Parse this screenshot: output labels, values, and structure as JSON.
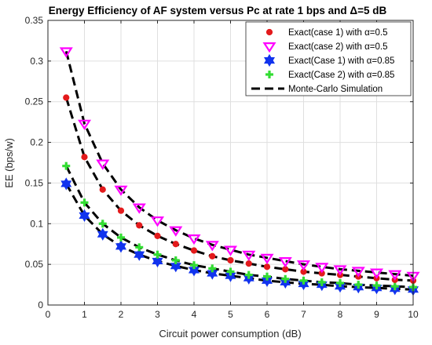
{
  "chart_data": {
    "type": "line",
    "title": "Energy Efficiency of AF system versus Pc at rate 1 bps and Δ=5 dB",
    "xlabel": "Circuit power consumption (dB)",
    "ylabel": "EE (bps/w)",
    "xlim": [
      0,
      10
    ],
    "ylim": [
      0,
      0.35
    ],
    "xticks": [
      "0",
      "1",
      "2",
      "3",
      "4",
      "5",
      "6",
      "7",
      "8",
      "9",
      "10"
    ],
    "yticks": [
      "0",
      "0.05",
      "0.1",
      "0.15",
      "0.2",
      "0.25",
      "0.3",
      "0.35"
    ],
    "grid": true,
    "legend_position": "top-right",
    "x": [
      0.5,
      1,
      1.5,
      2,
      2.5,
      3,
      3.5,
      4,
      4.5,
      5,
      5.5,
      6,
      6.5,
      7,
      7.5,
      8,
      8.5,
      9,
      9.5,
      10
    ],
    "series": [
      {
        "name": "Exact(case 1) with α=0.5",
        "marker": "dot",
        "color": "#e31a1c",
        "values": [
          0.255,
          0.182,
          0.142,
          0.116,
          0.098,
          0.085,
          0.075,
          0.067,
          0.06,
          0.055,
          0.051,
          0.047,
          0.044,
          0.041,
          0.039,
          0.037,
          0.035,
          0.033,
          0.031,
          0.03
        ]
      },
      {
        "name": "Exact(case 2) with α=0.5",
        "marker": "triangle-down",
        "color": "#ff00ff",
        "values": [
          0.312,
          0.223,
          0.174,
          0.142,
          0.12,
          0.104,
          0.092,
          0.082,
          0.074,
          0.068,
          0.062,
          0.058,
          0.054,
          0.05,
          0.047,
          0.044,
          0.042,
          0.04,
          0.038,
          0.036
        ]
      },
      {
        "name": "Exact(Case 1) with α=0.85",
        "marker": "hexagram",
        "color": "#1133ee",
        "values": [
          0.149,
          0.11,
          0.087,
          0.072,
          0.062,
          0.054,
          0.048,
          0.043,
          0.039,
          0.036,
          0.033,
          0.03,
          0.028,
          0.026,
          0.025,
          0.023,
          0.022,
          0.021,
          0.02,
          0.019
        ]
      },
      {
        "name": "Exact(Case 2) with α=0.85",
        "marker": "plus",
        "color": "#33dd33",
        "values": [
          0.171,
          0.126,
          0.1,
          0.083,
          0.071,
          0.062,
          0.055,
          0.049,
          0.045,
          0.041,
          0.037,
          0.035,
          0.032,
          0.03,
          0.028,
          0.027,
          0.025,
          0.024,
          0.023,
          0.022
        ]
      },
      {
        "name": "Monte-Carlo Simulation",
        "marker": "dashed-line",
        "color": "#000000",
        "values": null
      }
    ]
  }
}
